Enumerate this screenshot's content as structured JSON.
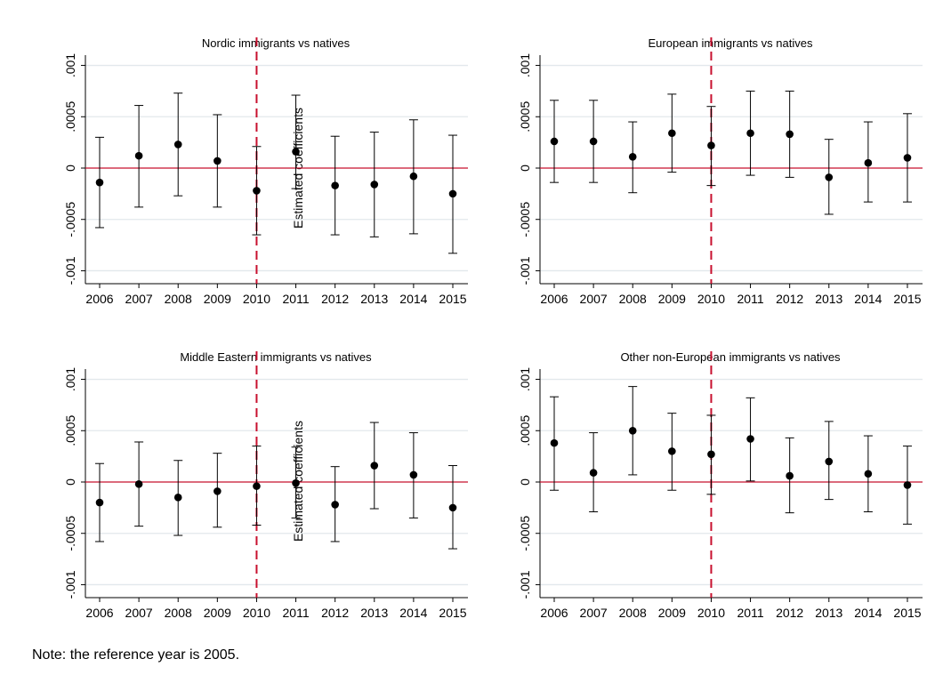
{
  "note": "Note: the reference year is 2005.",
  "chart_data": [
    {
      "type": "scatter",
      "title": "Nordic immigrants vs natives",
      "ylabel": "Estimated coefficients",
      "xlabel": "",
      "x": [
        2006,
        2007,
        2008,
        2009,
        2010,
        2011,
        2012,
        2013,
        2014,
        2015
      ],
      "y": [
        -0.00014,
        0.00012,
        0.00023,
        7e-05,
        -0.00022,
        0.00016,
        -0.00017,
        -0.00016,
        -8e-05,
        -0.00025
      ],
      "ci_low": [
        -0.00058,
        -0.00038,
        -0.00027,
        -0.00038,
        -0.00065,
        -0.0002,
        -0.00065,
        -0.00067,
        -0.00064,
        -0.00083
      ],
      "ci_high": [
        0.0003,
        0.00061,
        0.00073,
        0.00052,
        0.00021,
        0.00071,
        0.00031,
        0.00035,
        0.00047,
        0.00032
      ],
      "ylim": [
        -0.0011,
        0.0011
      ],
      "yticks": [
        -0.001,
        -0.0005,
        0,
        0.0005,
        0.001
      ],
      "ytick_labels": [
        "-.001",
        "-.0005",
        "0",
        ".0005",
        ".001"
      ],
      "xticks": [
        "2006",
        "2007",
        "2008",
        "2009",
        "2010",
        "2011",
        "2012",
        "2013",
        "2014",
        "2015"
      ],
      "reference_line_x": 2010,
      "zero_line": true,
      "grid": true
    },
    {
      "type": "scatter",
      "title": "European immigrants vs natives",
      "ylabel": "",
      "xlabel": "",
      "x": [
        2006,
        2007,
        2008,
        2009,
        2010,
        2011,
        2012,
        2013,
        2014,
        2015
      ],
      "y": [
        0.00026,
        0.00026,
        0.00011,
        0.00034,
        0.00022,
        0.00034,
        0.00033,
        -9e-05,
        5e-05,
        0.0001
      ],
      "ci_low": [
        -0.00014,
        -0.00014,
        -0.00024,
        -4e-05,
        -0.00017,
        -7e-05,
        -9e-05,
        -0.00045,
        -0.00033,
        -0.00033
      ],
      "ci_high": [
        0.00066,
        0.00066,
        0.00045,
        0.00072,
        0.0006,
        0.00075,
        0.00075,
        0.00028,
        0.00045,
        0.00053
      ],
      "ylim": [
        -0.0011,
        0.0011
      ],
      "yticks": [
        -0.001,
        -0.0005,
        0,
        0.0005,
        0.001
      ],
      "ytick_labels": [
        "-.001",
        "-.0005",
        "0",
        ".0005",
        ".001"
      ],
      "xticks": [
        "2006",
        "2007",
        "2008",
        "2009",
        "2010",
        "2011",
        "2012",
        "2013",
        "2014",
        "2015"
      ],
      "reference_line_x": 2010,
      "zero_line": true,
      "grid": true
    },
    {
      "type": "scatter",
      "title": "Middle Eastern immigrants vs natives",
      "ylabel": "Estimated coefficients",
      "xlabel": "",
      "x": [
        2006,
        2007,
        2008,
        2009,
        2010,
        2011,
        2012,
        2013,
        2014,
        2015
      ],
      "y": [
        -0.0002,
        -2e-05,
        -0.00015,
        -9e-05,
        -4e-05,
        -1e-05,
        -0.00022,
        0.00016,
        7e-05,
        -0.00025
      ],
      "ci_low": [
        -0.00058,
        -0.00043,
        -0.00052,
        -0.00044,
        -0.00042,
        -0.00035,
        -0.00058,
        -0.00026,
        -0.00035,
        -0.00065
      ],
      "ci_high": [
        0.00018,
        0.00039,
        0.00021,
        0.00028,
        0.00035,
        0.00034,
        0.00015,
        0.00058,
        0.00048,
        0.00016
      ],
      "ylim": [
        -0.0011,
        0.0011
      ],
      "yticks": [
        -0.001,
        -0.0005,
        0,
        0.0005,
        0.001
      ],
      "ytick_labels": [
        "-.001",
        "-.0005",
        "0",
        ".0005",
        ".001"
      ],
      "xticks": [
        "2006",
        "2007",
        "2008",
        "2009",
        "2010",
        "2011",
        "2012",
        "2013",
        "2014",
        "2015"
      ],
      "reference_line_x": 2010,
      "zero_line": true,
      "grid": true
    },
    {
      "type": "scatter",
      "title": "Other non-European immigrants vs natives",
      "ylabel": "",
      "xlabel": "",
      "x": [
        2006,
        2007,
        2008,
        2009,
        2010,
        2011,
        2012,
        2013,
        2014,
        2015
      ],
      "y": [
        0.00038,
        9e-05,
        0.0005,
        0.0003,
        0.00027,
        0.00042,
        6e-05,
        0.0002,
        8e-05,
        -3e-05
      ],
      "ci_low": [
        -8e-05,
        -0.00029,
        7e-05,
        -8e-05,
        -0.00012,
        1e-05,
        -0.0003,
        -0.00017,
        -0.00029,
        -0.00041
      ],
      "ci_high": [
        0.00083,
        0.00048,
        0.00093,
        0.00067,
        0.00065,
        0.00082,
        0.00043,
        0.00059,
        0.00045,
        0.00035
      ],
      "ylim": [
        -0.0011,
        0.0011
      ],
      "yticks": [
        -0.001,
        -0.0005,
        0,
        0.0005,
        0.001
      ],
      "ytick_labels": [
        "-.001",
        "-.0005",
        "0",
        ".0005",
        ".001"
      ],
      "xticks": [
        "2006",
        "2007",
        "2008",
        "2009",
        "2010",
        "2011",
        "2012",
        "2013",
        "2014",
        "2015"
      ],
      "reference_line_x": 2010,
      "zero_line": true,
      "grid": true
    }
  ],
  "colors": {
    "zero_line": "#c8102e",
    "reference_line": "#c8102e",
    "grid": "#e2e8ec",
    "marker": "#000000"
  }
}
